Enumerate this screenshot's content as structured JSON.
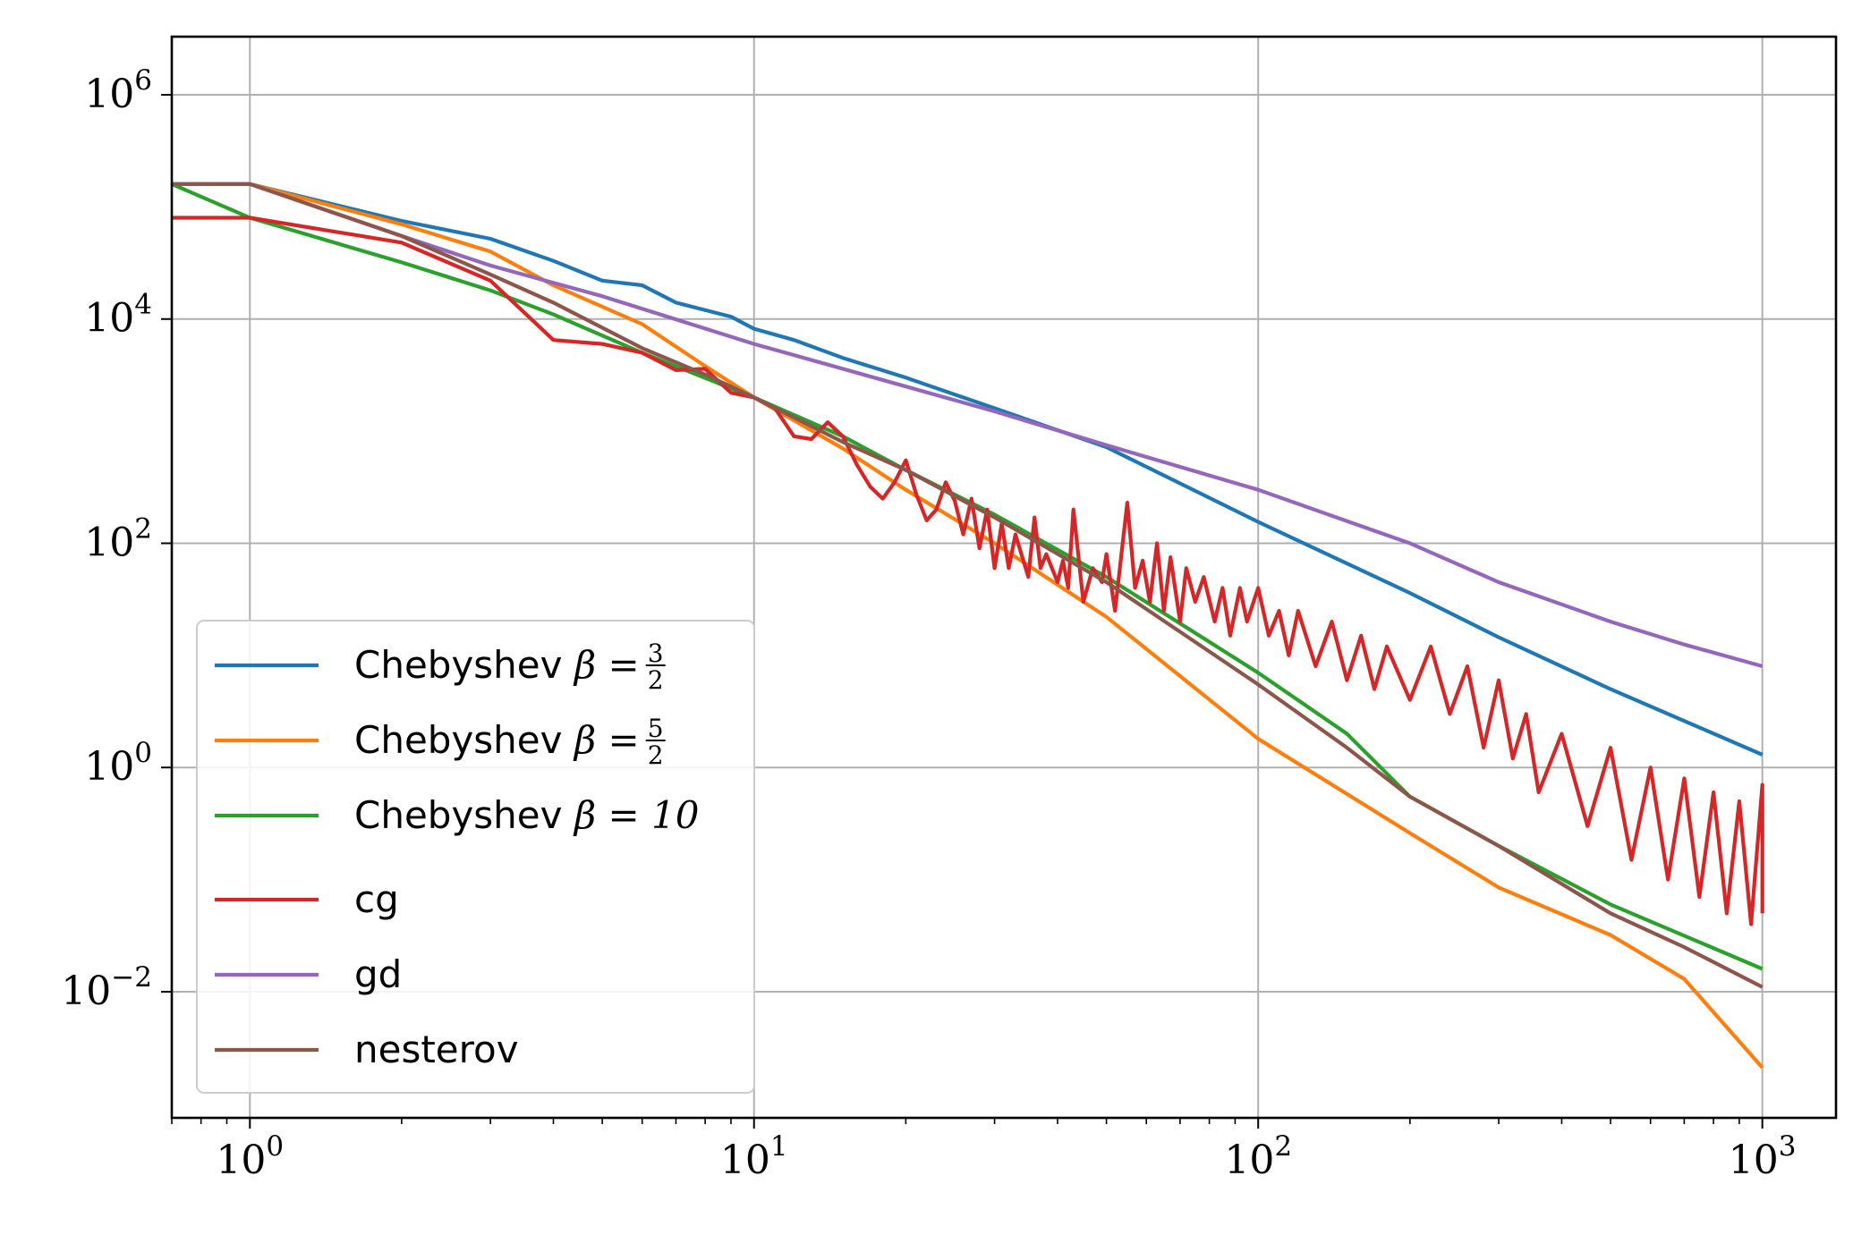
{
  "chart_data": {
    "type": "line",
    "title": "",
    "xlabel": "",
    "ylabel": "",
    "xscale": "log",
    "yscale": "log",
    "xlim": [
      0.7,
      1400
    ],
    "ylim": [
      0.00075,
      3300000
    ],
    "grid": true,
    "legend_position": "lower-left",
    "x_ticks": [
      {
        "value": 1,
        "base": "10",
        "exp": "0"
      },
      {
        "value": 10,
        "base": "10",
        "exp": "1"
      },
      {
        "value": 100,
        "base": "10",
        "exp": "2"
      },
      {
        "value": 1000,
        "base": "10",
        "exp": "3"
      }
    ],
    "y_ticks": [
      {
        "value": 0.01,
        "base": "10",
        "exp": "−2"
      },
      {
        "value": 1,
        "base": "10",
        "exp": "0"
      },
      {
        "value": 100,
        "base": "10",
        "exp": "2"
      },
      {
        "value": 10000,
        "base": "10",
        "exp": "4"
      },
      {
        "value": 1000000,
        "base": "10",
        "exp": "6"
      }
    ],
    "series": [
      {
        "name": "Chebyshev β = 3/2",
        "legend_prefix": "Chebyshev ",
        "legend_math": "β = ",
        "legend_frac": [
          "3",
          "2"
        ],
        "color": "#1f77b4",
        "points": [
          [
            0.7,
            160000
          ],
          [
            1,
            160000
          ],
          [
            2,
            75000
          ],
          [
            3,
            52000
          ],
          [
            4,
            33000
          ],
          [
            5,
            22000
          ],
          [
            6,
            20000
          ],
          [
            7,
            14000
          ],
          [
            9,
            10500
          ],
          [
            10,
            8200
          ],
          [
            12,
            6500
          ],
          [
            15,
            4500
          ],
          [
            20,
            3000
          ],
          [
            30,
            1600
          ],
          [
            50,
            720
          ],
          [
            100,
            155
          ],
          [
            200,
            36
          ],
          [
            300,
            14.5
          ],
          [
            500,
            5
          ],
          [
            700,
            2.6
          ],
          [
            1000,
            1.3
          ]
        ]
      },
      {
        "name": "Chebyshev β = 5/2",
        "legend_prefix": "Chebyshev ",
        "legend_math": "β = ",
        "legend_frac": [
          "5",
          "2"
        ],
        "color": "#ff7f0e",
        "points": [
          [
            0.7,
            160000
          ],
          [
            1,
            160000
          ],
          [
            2,
            70000
          ],
          [
            3,
            40000
          ],
          [
            4,
            20000
          ],
          [
            6,
            9000
          ],
          [
            8,
            3800
          ],
          [
            10,
            2000
          ],
          [
            15,
            700
          ],
          [
            20,
            300
          ],
          [
            30,
            100
          ],
          [
            50,
            22
          ],
          [
            100,
            1.8
          ],
          [
            200,
            0.26
          ],
          [
            300,
            0.085
          ],
          [
            500,
            0.032
          ],
          [
            700,
            0.013
          ],
          [
            1000,
            0.0021
          ]
        ]
      },
      {
        "name": "Chebyshev β = 10",
        "legend_prefix": "Chebyshev ",
        "legend_math": "β = 10",
        "legend_frac": null,
        "color": "#2ca02c",
        "points": [
          [
            0.7,
            160000
          ],
          [
            1,
            80000
          ],
          [
            2,
            32000
          ],
          [
            3,
            18000
          ],
          [
            4,
            11000
          ],
          [
            6,
            5000
          ],
          [
            10,
            2000
          ],
          [
            15,
            900
          ],
          [
            20,
            450
          ],
          [
            30,
            180
          ],
          [
            50,
            50
          ],
          [
            100,
            7
          ],
          [
            150,
            2
          ],
          [
            200,
            0.55
          ],
          [
            300,
            0.2
          ],
          [
            500,
            0.06
          ],
          [
            1000,
            0.016
          ]
        ]
      },
      {
        "name": "cg",
        "legend_prefix": "cg",
        "legend_math": "",
        "legend_frac": null,
        "color": "#d62728",
        "points": [
          [
            0.7,
            80000
          ],
          [
            1,
            80000
          ],
          [
            2,
            48000
          ],
          [
            3,
            22000
          ],
          [
            4,
            6500
          ],
          [
            5,
            6000
          ],
          [
            6,
            5000
          ],
          [
            7,
            3500
          ],
          [
            8,
            3600
          ],
          [
            9,
            2200
          ],
          [
            10,
            2000
          ],
          [
            11,
            1600
          ],
          [
            12,
            900
          ],
          [
            13,
            850
          ],
          [
            14,
            1200
          ],
          [
            15,
            900
          ],
          [
            16,
            500
          ],
          [
            17,
            320
          ],
          [
            18,
            250
          ],
          [
            19,
            350
          ],
          [
            20,
            550
          ],
          [
            21,
            270
          ],
          [
            22,
            160
          ],
          [
            23,
            200
          ],
          [
            24,
            350
          ],
          [
            25,
            240
          ],
          [
            26,
            120
          ],
          [
            27,
            250
          ],
          [
            28,
            90
          ],
          [
            29,
            200
          ],
          [
            30,
            60
          ],
          [
            31,
            150
          ],
          [
            32,
            60
          ],
          [
            33,
            120
          ],
          [
            35,
            50
          ],
          [
            36,
            170
          ],
          [
            37,
            60
          ],
          [
            38,
            80
          ],
          [
            40,
            45
          ],
          [
            41,
            70
          ],
          [
            42,
            40
          ],
          [
            43,
            200
          ],
          [
            45,
            30
          ],
          [
            47,
            60
          ],
          [
            49,
            45
          ],
          [
            50,
            80
          ],
          [
            52,
            25
          ],
          [
            55,
            230
          ],
          [
            57,
            40
          ],
          [
            59,
            70
          ],
          [
            61,
            30
          ],
          [
            63,
            100
          ],
          [
            65,
            25
          ],
          [
            67,
            75
          ],
          [
            70,
            20
          ],
          [
            72,
            60
          ],
          [
            75,
            30
          ],
          [
            78,
            50
          ],
          [
            82,
            20
          ],
          [
            85,
            40
          ],
          [
            88,
            15
          ],
          [
            92,
            40
          ],
          [
            95,
            20
          ],
          [
            100,
            40
          ],
          [
            105,
            15
          ],
          [
            110,
            25
          ],
          [
            115,
            10
          ],
          [
            120,
            25
          ],
          [
            130,
            8
          ],
          [
            140,
            20
          ],
          [
            150,
            6
          ],
          [
            160,
            15
          ],
          [
            170,
            5
          ],
          [
            180,
            12
          ],
          [
            200,
            4
          ],
          [
            220,
            12
          ],
          [
            240,
            3
          ],
          [
            260,
            8
          ],
          [
            280,
            1.5
          ],
          [
            300,
            6
          ],
          [
            320,
            1.2
          ],
          [
            340,
            3
          ],
          [
            360,
            0.6
          ],
          [
            400,
            2
          ],
          [
            450,
            0.3
          ],
          [
            500,
            1.5
          ],
          [
            550,
            0.15
          ],
          [
            600,
            1
          ],
          [
            650,
            0.1
          ],
          [
            700,
            0.8
          ],
          [
            750,
            0.07
          ],
          [
            800,
            0.6
          ],
          [
            850,
            0.05
          ],
          [
            900,
            0.5
          ],
          [
            950,
            0.04
          ],
          [
            1000,
            0.7
          ],
          [
            1000,
            0.05
          ]
        ]
      },
      {
        "name": "gd",
        "legend_prefix": "gd",
        "legend_math": "",
        "legend_frac": null,
        "color": "#9467bd",
        "points": [
          [
            0.7,
            160000
          ],
          [
            1,
            160000
          ],
          [
            2,
            55000
          ],
          [
            3,
            30000
          ],
          [
            5,
            16000
          ],
          [
            10,
            6000
          ],
          [
            20,
            2500
          ],
          [
            30,
            1500
          ],
          [
            50,
            750
          ],
          [
            100,
            300
          ],
          [
            200,
            100
          ],
          [
            300,
            45
          ],
          [
            500,
            20
          ],
          [
            700,
            12.5
          ],
          [
            1000,
            8
          ]
        ]
      },
      {
        "name": "nesterov",
        "legend_prefix": "nesterov",
        "legend_math": "",
        "legend_frac": null,
        "color": "#8c564b",
        "points": [
          [
            0.7,
            160000
          ],
          [
            1,
            160000
          ],
          [
            2,
            55000
          ],
          [
            3,
            25000
          ],
          [
            4,
            14000
          ],
          [
            6,
            5500
          ],
          [
            8,
            3200
          ],
          [
            10,
            2000
          ],
          [
            15,
            800
          ],
          [
            20,
            450
          ],
          [
            30,
            170
          ],
          [
            50,
            45
          ],
          [
            100,
            5.5
          ],
          [
            150,
            1.5
          ],
          [
            200,
            0.55
          ],
          [
            300,
            0.2
          ],
          [
            500,
            0.05
          ],
          [
            700,
            0.025
          ],
          [
            1000,
            0.011
          ]
        ]
      }
    ]
  }
}
